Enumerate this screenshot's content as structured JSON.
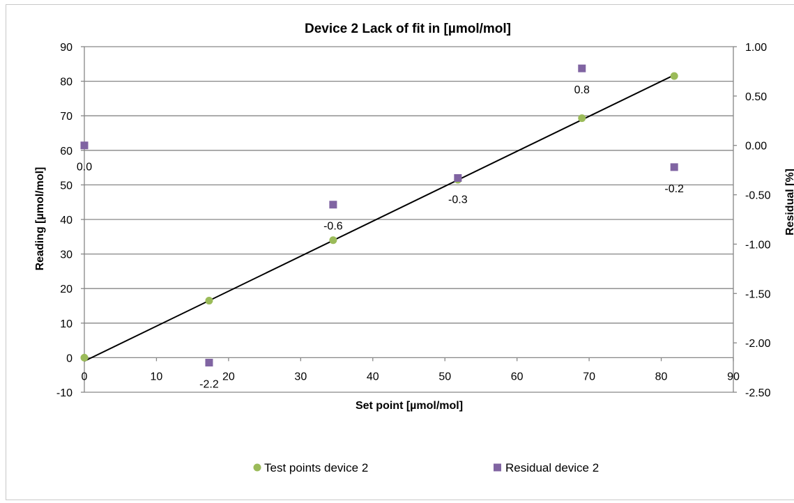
{
  "chart_data": {
    "type": "scatter",
    "title": "Device 2  Lack of fit in [µmol/mol]",
    "xlabel": "Set point [µmol/mol]",
    "ylabel": "Reading [µmol/mol]",
    "y2label": "Residual [%]",
    "xlim": [
      0,
      90
    ],
    "ylim": [
      -10,
      90
    ],
    "y2lim": [
      -2.5,
      1.0
    ],
    "x_ticks": [
      "0",
      "10",
      "20",
      "30",
      "40",
      "50",
      "60",
      "70",
      "80",
      "90"
    ],
    "y_ticks": [
      "-10",
      "0",
      "10",
      "20",
      "30",
      "40",
      "50",
      "60",
      "70",
      "80",
      "90"
    ],
    "y2_ticks": [
      "-2.50",
      "-2.00",
      "-1.50",
      "-1.00",
      "-0.50",
      "0.00",
      "0.50",
      "1.00"
    ],
    "grid": "horizontal",
    "legend_position": "bottom",
    "series": [
      {
        "name": "Test points device 2",
        "axis": "left",
        "marker": "circle",
        "color": "#9bbb59",
        "points": [
          {
            "x": 0,
            "y": 0
          },
          {
            "x": 17.3,
            "y": 16.5
          },
          {
            "x": 34.5,
            "y": 34.0
          },
          {
            "x": 51.8,
            "y": 51.5
          },
          {
            "x": 69.0,
            "y": 69.3
          },
          {
            "x": 81.8,
            "y": 81.5
          }
        ]
      },
      {
        "name": "Residual device 2",
        "axis": "right",
        "marker": "square",
        "color": "#8064a2",
        "points": [
          {
            "x": 0,
            "y": 0.0,
            "label": "0.0"
          },
          {
            "x": 17.3,
            "y": -2.2,
            "label": "-2.2"
          },
          {
            "x": 34.5,
            "y": -0.6,
            "label": "-0.6"
          },
          {
            "x": 51.8,
            "y": -0.33,
            "label": "-0.3"
          },
          {
            "x": 69.0,
            "y": 0.78,
            "label": "0.8"
          },
          {
            "x": 81.8,
            "y": -0.22,
            "label": "-0.2"
          }
        ]
      }
    ],
    "trendline": {
      "x": [
        0,
        81.8
      ],
      "y": [
        -1.0,
        81.8
      ],
      "color": "#000000"
    }
  }
}
